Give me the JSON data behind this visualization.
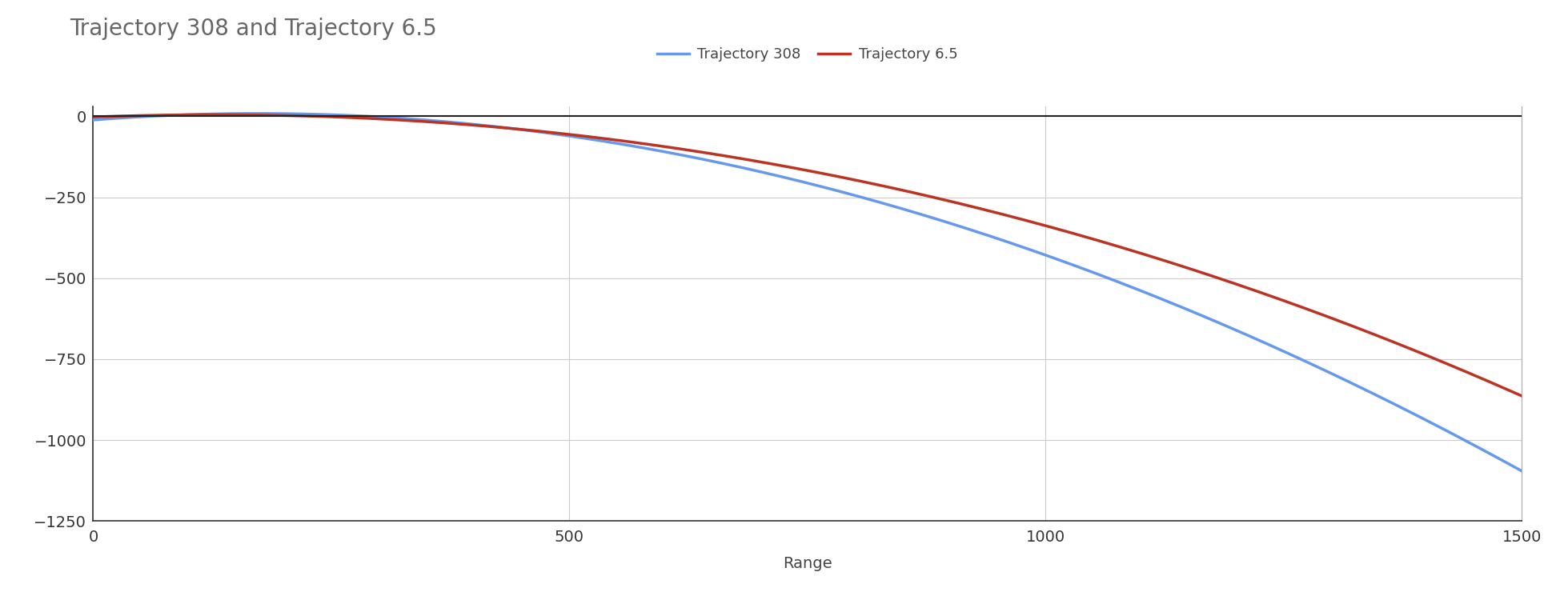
{
  "title": "Trajectory 308 and Trajectory 6.5",
  "title_color": "#666666",
  "title_fontsize": 20,
  "xlabel": "Range",
  "xlabel_fontsize": 14,
  "legend_labels": [
    "Trajectory 308",
    "Trajectory 6.5"
  ],
  "line_colors": [
    "#6699ee",
    "#bb3322"
  ],
  "line_width": 2.5,
  "xlim": [
    0,
    1500
  ],
  "ylim": [
    -1250,
    30
  ],
  "yticks": [
    0,
    -250,
    -500,
    -750,
    -1000,
    -1250
  ],
  "xticks": [
    0,
    500,
    1000,
    1500
  ],
  "background_color": "#ffffff",
  "grid_color": "#cccccc",
  "grid_linewidth": 0.8,
  "x_308": [
    0,
    100,
    200,
    300,
    400,
    500,
    600,
    700,
    800,
    900,
    1000,
    1100,
    1200,
    1300,
    1400,
    1500
  ],
  "y_308": [
    0,
    -0.5,
    -3,
    -9,
    -22,
    -55,
    -105,
    -170,
    -250,
    -330,
    -420,
    -530,
    -660,
    -810,
    -960,
    -1075
  ],
  "x_65": [
    0,
    100,
    200,
    300,
    400,
    500,
    600,
    700,
    800,
    900,
    1000,
    1100,
    1200,
    1300,
    1400,
    1500
  ],
  "y_65": [
    0,
    -0.3,
    -2,
    -7,
    -18,
    -46,
    -92,
    -150,
    -215,
    -265,
    -330,
    -415,
    -515,
    -625,
    -740,
    -865
  ]
}
